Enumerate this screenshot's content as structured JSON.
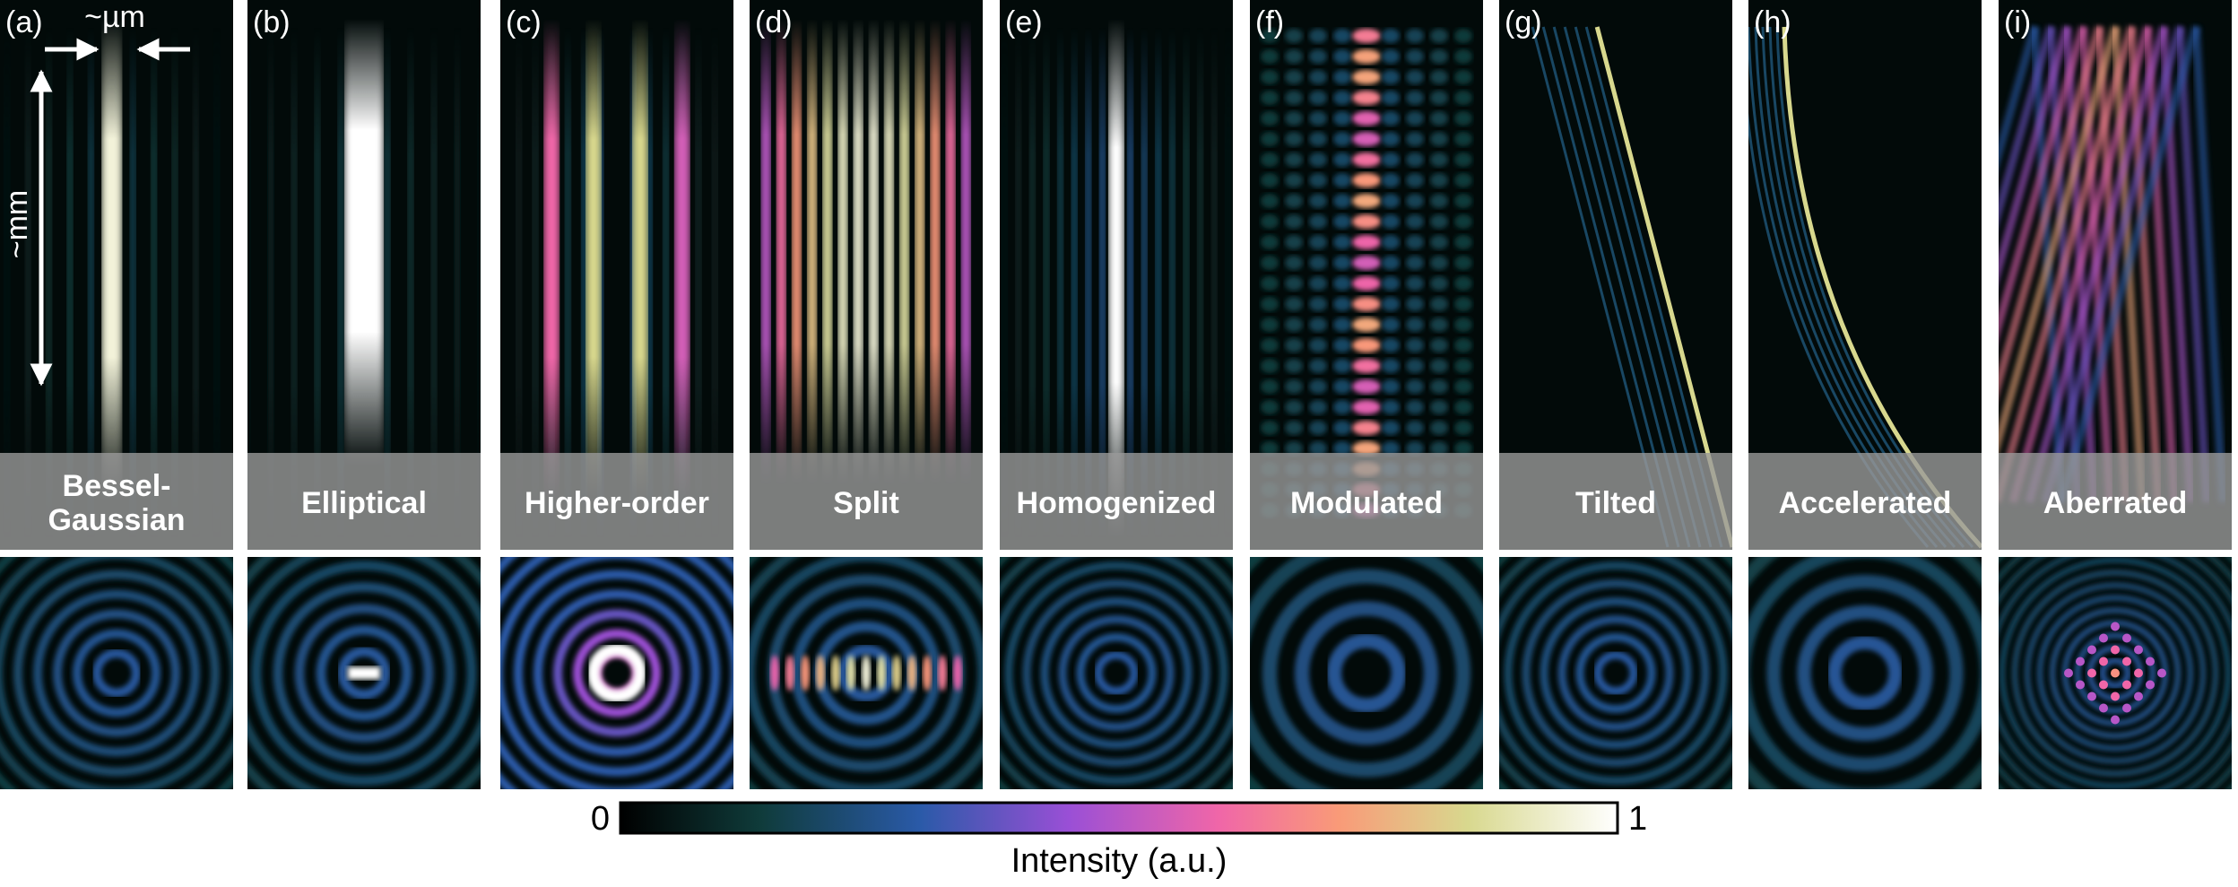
{
  "panels": [
    {
      "letter": "(a)",
      "label_lines": [
        "Bessel-",
        "Gaussian"
      ]
    },
    {
      "letter": "(b)",
      "label_lines": [
        "Elliptical"
      ]
    },
    {
      "letter": "(c)",
      "label_lines": [
        "Higher-order"
      ]
    },
    {
      "letter": "(d)",
      "label_lines": [
        "Split"
      ]
    },
    {
      "letter": "(e)",
      "label_lines": [
        "Homogenized"
      ]
    },
    {
      "letter": "(f)",
      "label_lines": [
        "Modulated"
      ]
    },
    {
      "letter": "(g)",
      "label_lines": [
        "Tilted"
      ]
    },
    {
      "letter": "(h)",
      "label_lines": [
        "Accelerated"
      ]
    },
    {
      "letter": "(i)",
      "label_lines": [
        "Aberrated"
      ]
    }
  ],
  "annotations": {
    "width_scale": "~µm",
    "length_scale": "~mm"
  },
  "colorbar": {
    "min": 0,
    "max": 1,
    "label": "Intensity (a.u.)"
  }
}
